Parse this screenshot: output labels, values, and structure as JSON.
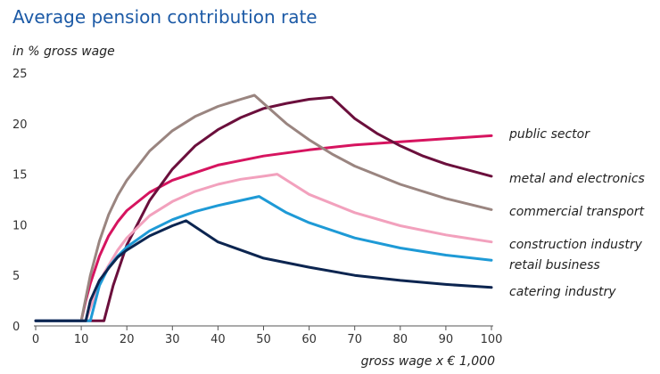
{
  "chart_data": {
    "type": "line",
    "title": "Average pension contribution rate",
    "ylabel": "in % gross wage",
    "xlabel": "gross wage x € 1,000",
    "xlim": [
      0,
      100
    ],
    "ylim": [
      0,
      25
    ],
    "xticks": [
      0,
      10,
      20,
      30,
      40,
      50,
      60,
      70,
      80,
      90,
      100
    ],
    "yticks": [
      0,
      5,
      10,
      15,
      20,
      25
    ],
    "grid": false,
    "legend": "right, end of lines",
    "series": [
      {
        "name": "public sector",
        "color": "#d6145f",
        "points": [
          [
            0,
            0.5
          ],
          [
            10,
            0.5
          ],
          [
            11,
            2.5
          ],
          [
            12,
            4.2
          ],
          [
            14,
            6.9
          ],
          [
            16,
            8.9
          ],
          [
            18,
            10.3
          ],
          [
            20,
            11.4
          ],
          [
            25,
            13.2
          ],
          [
            30,
            14.4
          ],
          [
            40,
            15.9
          ],
          [
            50,
            16.8
          ],
          [
            60,
            17.4
          ],
          [
            70,
            17.9
          ],
          [
            80,
            18.2
          ],
          [
            90,
            18.5
          ],
          [
            100,
            18.8
          ]
        ]
      },
      {
        "name": "metal and electronics",
        "color": "#6b0f3c",
        "points": [
          [
            0,
            0.5
          ],
          [
            15,
            0.5
          ],
          [
            17,
            4.0
          ],
          [
            20,
            8.0
          ],
          [
            25,
            12.4
          ],
          [
            30,
            15.5
          ],
          [
            35,
            17.8
          ],
          [
            40,
            19.4
          ],
          [
            45,
            20.6
          ],
          [
            50,
            21.5
          ],
          [
            55,
            22.0
          ],
          [
            60,
            22.4
          ],
          [
            65,
            22.6
          ],
          [
            70,
            20.5
          ],
          [
            75,
            19.0
          ],
          [
            80,
            17.8
          ],
          [
            85,
            16.8
          ],
          [
            90,
            16.0
          ],
          [
            95,
            15.4
          ],
          [
            100,
            14.8
          ]
        ]
      },
      {
        "name": "commercial transport",
        "color": "#9a8580",
        "points": [
          [
            0,
            0.5
          ],
          [
            10,
            0.5
          ],
          [
            12,
            5.0
          ],
          [
            14,
            8.4
          ],
          [
            16,
            11.0
          ],
          [
            18,
            12.9
          ],
          [
            20,
            14.4
          ],
          [
            25,
            17.3
          ],
          [
            30,
            19.3
          ],
          [
            35,
            20.7
          ],
          [
            40,
            21.7
          ],
          [
            45,
            22.4
          ],
          [
            48,
            22.8
          ],
          [
            55,
            20.0
          ],
          [
            60,
            18.4
          ],
          [
            65,
            17.0
          ],
          [
            70,
            15.8
          ],
          [
            80,
            14.0
          ],
          [
            90,
            12.6
          ],
          [
            100,
            11.5
          ]
        ]
      },
      {
        "name": "construction industry",
        "color": "#f2a1bd",
        "points": [
          [
            0,
            0.5
          ],
          [
            11,
            0.5
          ],
          [
            13,
            3.0
          ],
          [
            15,
            5.2
          ],
          [
            18,
            7.5
          ],
          [
            20,
            8.7
          ],
          [
            25,
            10.9
          ],
          [
            30,
            12.3
          ],
          [
            35,
            13.3
          ],
          [
            40,
            14.0
          ],
          [
            45,
            14.5
          ],
          [
            50,
            14.8
          ],
          [
            53,
            15.0
          ],
          [
            60,
            13.0
          ],
          [
            70,
            11.2
          ],
          [
            80,
            9.9
          ],
          [
            90,
            9.0
          ],
          [
            100,
            8.3
          ]
        ]
      },
      {
        "name": "retail business",
        "color": "#1e9ad6",
        "points": [
          [
            0,
            0.5
          ],
          [
            12,
            0.5
          ],
          [
            14,
            4.0
          ],
          [
            16,
            5.8
          ],
          [
            18,
            6.9
          ],
          [
            20,
            7.8
          ],
          [
            25,
            9.4
          ],
          [
            30,
            10.5
          ],
          [
            35,
            11.3
          ],
          [
            40,
            11.9
          ],
          [
            45,
            12.4
          ],
          [
            49,
            12.8
          ],
          [
            55,
            11.2
          ],
          [
            60,
            10.2
          ],
          [
            70,
            8.7
          ],
          [
            80,
            7.7
          ],
          [
            90,
            7.0
          ],
          [
            100,
            6.5
          ]
        ]
      },
      {
        "name": "catering industry",
        "color": "#0c2550",
        "points": [
          [
            0,
            0.5
          ],
          [
            11,
            0.5
          ],
          [
            12,
            2.5
          ],
          [
            14,
            4.5
          ],
          [
            16,
            5.7
          ],
          [
            18,
            6.8
          ],
          [
            20,
            7.5
          ],
          [
            25,
            8.9
          ],
          [
            30,
            9.9
          ],
          [
            33,
            10.4
          ],
          [
            40,
            8.3
          ],
          [
            45,
            7.5
          ],
          [
            50,
            6.7
          ],
          [
            60,
            5.8
          ],
          [
            70,
            5.0
          ],
          [
            80,
            4.5
          ],
          [
            90,
            4.1
          ],
          [
            100,
            3.8
          ]
        ]
      }
    ]
  }
}
